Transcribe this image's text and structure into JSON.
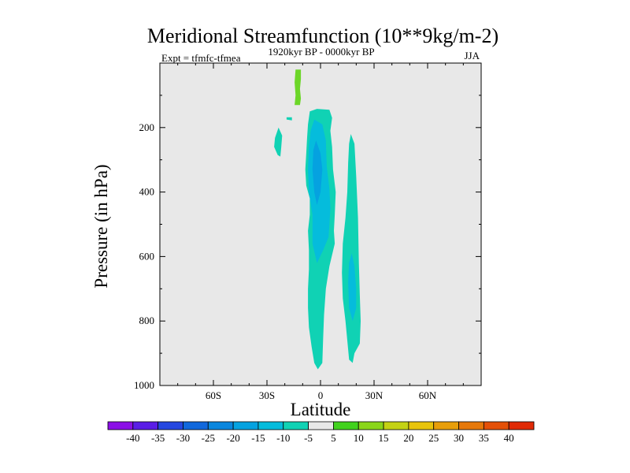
{
  "chart_data": {
    "type": "heatmap",
    "title": "Meridional Streamfunction (10**9kg/m-2)",
    "subtitle_left": "Expt = tfmfc-tfmea",
    "subtitle_center": "1920kyr BP - 0000kyr BP",
    "subtitle_right": "JJA",
    "xlabel": "Latitude",
    "ylabel": "Pressure (in hPa)",
    "xlim": [
      -90,
      90
    ],
    "ylim": [
      1000,
      0
    ],
    "x_ticks": [
      {
        "value": -60,
        "label": "60S"
      },
      {
        "value": -30,
        "label": "30S"
      },
      {
        "value": 0,
        "label": "0"
      },
      {
        "value": 30,
        "label": "30N"
      },
      {
        "value": 60,
        "label": "60N"
      }
    ],
    "y_ticks": [
      {
        "value": 200,
        "label": "200"
      },
      {
        "value": 400,
        "label": "400"
      },
      {
        "value": 600,
        "label": "600"
      },
      {
        "value": 800,
        "label": "800"
      },
      {
        "value": 1000,
        "label": "1000"
      }
    ],
    "colorbar": {
      "levels": [
        -40,
        -35,
        -30,
        -25,
        -20,
        -15,
        -10,
        -5,
        5,
        10,
        15,
        20,
        25,
        30,
        35,
        40
      ],
      "colors": [
        "#8b10e6",
        "#5a1ee6",
        "#2647e0",
        "#1168dc",
        "#0a86de",
        "#05a2e0",
        "#05bcdc",
        "#10d2b4",
        "#e8e8e8",
        "#41d21e",
        "#8ad61a",
        "#c4d214",
        "#e8c40c",
        "#e89e0a",
        "#e6780a",
        "#e45008",
        "#e02a06"
      ]
    },
    "contours": [
      {
        "name": "stratospheric-positive-cell",
        "fill": "#6cd628",
        "points": [
          [
            -14,
            20
          ],
          [
            -11,
            20
          ],
          [
            -11,
            50
          ],
          [
            -11.5,
            80
          ],
          [
            -11,
            110
          ],
          [
            -11.5,
            130
          ],
          [
            -14.5,
            130
          ],
          [
            -14,
            100
          ],
          [
            -14.5,
            60
          ]
        ]
      },
      {
        "name": "tropical-negative-cell-outer",
        "fill": "#10d2b4",
        "points": [
          [
            -6,
            150
          ],
          [
            -2,
            142
          ],
          [
            5,
            145
          ],
          [
            6.5,
            170
          ],
          [
            5.5,
            210
          ],
          [
            6.5,
            260
          ],
          [
            7,
            330
          ],
          [
            8.5,
            400
          ],
          [
            8,
            470
          ],
          [
            7.5,
            520
          ],
          [
            8,
            560
          ],
          [
            5,
            630
          ],
          [
            3,
            700
          ],
          [
            2,
            780
          ],
          [
            1.5,
            850
          ],
          [
            1,
            930
          ],
          [
            -1.5,
            950
          ],
          [
            -3.5,
            930
          ],
          [
            -5,
            880
          ],
          [
            -6.5,
            820
          ],
          [
            -7,
            760
          ],
          [
            -7,
            700
          ],
          [
            -6.5,
            640
          ],
          [
            -6.5,
            580
          ],
          [
            -7,
            520
          ],
          [
            -6,
            470
          ],
          [
            -6,
            420
          ],
          [
            -8,
            380
          ],
          [
            -8.5,
            330
          ],
          [
            -8,
            280
          ],
          [
            -7.5,
            230
          ],
          [
            -7,
            190
          ]
        ]
      },
      {
        "name": "tropical-negative-cell-mid",
        "fill": "#05bcdc",
        "points": [
          [
            -3.5,
            175
          ],
          [
            1,
            190
          ],
          [
            3,
            240
          ],
          [
            3.5,
            320
          ],
          [
            5,
            390
          ],
          [
            5.5,
            450
          ],
          [
            5,
            500
          ],
          [
            4.5,
            540
          ],
          [
            1.5,
            580
          ],
          [
            -2,
            620
          ],
          [
            -4.5,
            560
          ],
          [
            -4.5,
            470
          ],
          [
            -6.5,
            400
          ],
          [
            -7,
            330
          ],
          [
            -6.5,
            260
          ],
          [
            -5.5,
            210
          ]
        ]
      },
      {
        "name": "tropical-negative-cell-core",
        "fill": "#05a2e0",
        "points": [
          [
            -2.5,
            240
          ],
          [
            0,
            280
          ],
          [
            1,
            330
          ],
          [
            0,
            400
          ],
          [
            -2,
            440
          ],
          [
            -3.5,
            400
          ],
          [
            -4.5,
            330
          ],
          [
            -4,
            270
          ]
        ]
      },
      {
        "name": "northern-negative-cell-outer",
        "fill": "#10d2b4",
        "points": [
          [
            17,
            220
          ],
          [
            19,
            250
          ],
          [
            20,
            350
          ],
          [
            21,
            480
          ],
          [
            21.5,
            620
          ],
          [
            22,
            720
          ],
          [
            22.5,
            800
          ],
          [
            22,
            870
          ],
          [
            19,
            900
          ],
          [
            18,
            930
          ],
          [
            16,
            920
          ],
          [
            15,
            860
          ],
          [
            14,
            800
          ],
          [
            12.5,
            730
          ],
          [
            12,
            650
          ],
          [
            12.5,
            560
          ],
          [
            14,
            480
          ],
          [
            15,
            400
          ],
          [
            15.5,
            310
          ],
          [
            16,
            250
          ]
        ]
      },
      {
        "name": "northern-negative-cell-inner",
        "fill": "#05bcdc",
        "points": [
          [
            17.5,
            590
          ],
          [
            19,
            630
          ],
          [
            20,
            700
          ],
          [
            20,
            760
          ],
          [
            18,
            800
          ],
          [
            16,
            760
          ],
          [
            15.5,
            680
          ],
          [
            16,
            620
          ]
        ]
      },
      {
        "name": "high-lat-negative-blob",
        "fill": "#10d2b4",
        "points": [
          [
            -25.5,
            232
          ],
          [
            -23.5,
            200
          ],
          [
            -21.5,
            225
          ],
          [
            -22,
            262
          ],
          [
            -22.5,
            290
          ],
          [
            -24,
            285
          ],
          [
            -26,
            260
          ]
        ]
      },
      {
        "name": "small-negative-fleck",
        "fill": "#10d2b4",
        "points": [
          [
            -19,
            168
          ],
          [
            -16,
            168
          ],
          [
            -16,
            178
          ],
          [
            -19,
            175
          ]
        ]
      }
    ]
  }
}
